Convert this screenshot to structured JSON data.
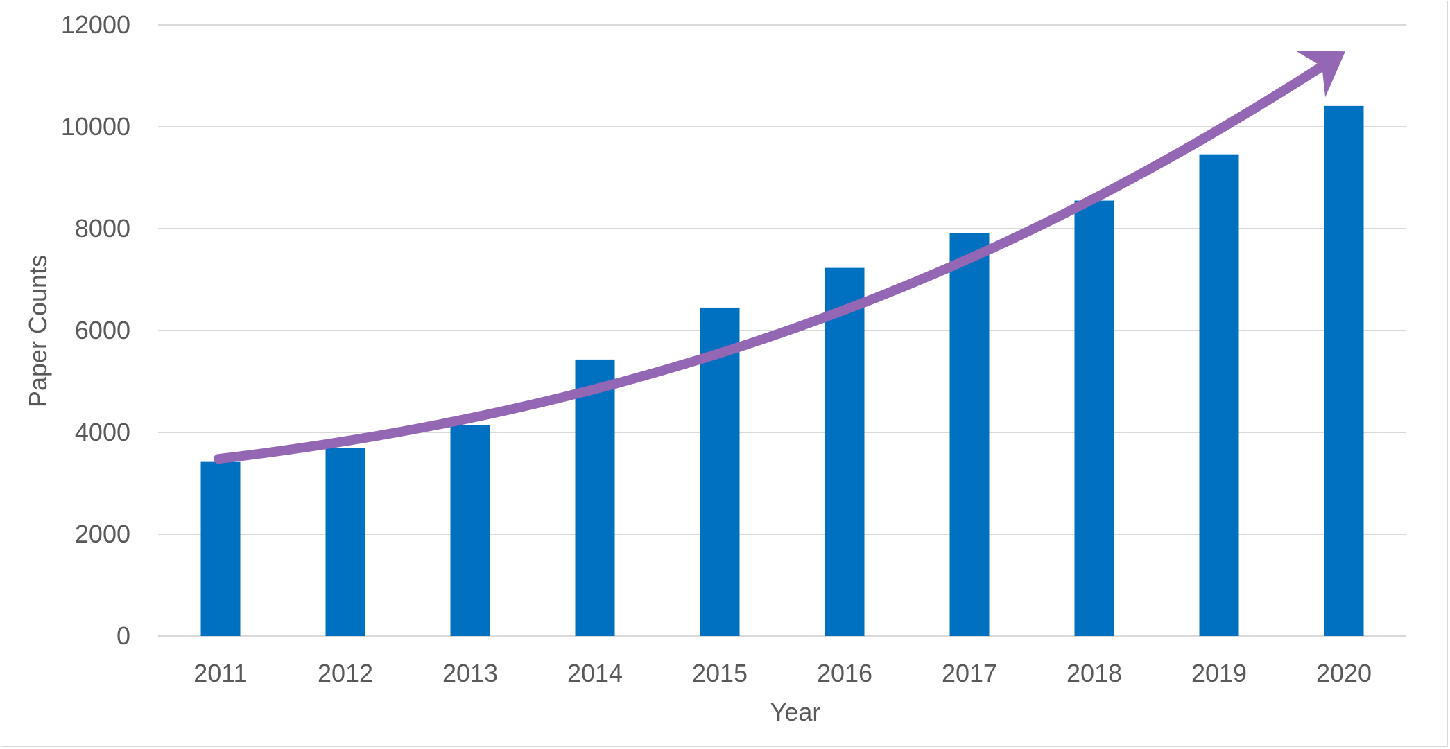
{
  "chart_data": {
    "type": "bar",
    "title": "",
    "xlabel": "Year",
    "ylabel": "Paper Counts",
    "categories": [
      "2011",
      "2012",
      "2013",
      "2014",
      "2015",
      "2016",
      "2017",
      "2018",
      "2019",
      "2020"
    ],
    "series": [
      {
        "values": [
          3420,
          3700,
          4140,
          5430,
          6450,
          7230,
          7910,
          8550,
          9460,
          10410
        ]
      }
    ],
    "ylim": [
      0,
      12000
    ],
    "yticks": [
      "0",
      "2000",
      "4000",
      "6000",
      "8000",
      "10000",
      "12000"
    ],
    "grid": true,
    "legend": "none",
    "annotations": [
      {
        "type": "trend-arrow",
        "from": {
          "x": "2011",
          "y": 3480
        },
        "to": {
          "x": "2020",
          "y": 11200
        },
        "color": "#9467b4"
      }
    ],
    "colors": {
      "bar": "#0070c0",
      "gridline": "#d9d9d9",
      "text": "#595959",
      "arrow": "#9467b4"
    }
  }
}
